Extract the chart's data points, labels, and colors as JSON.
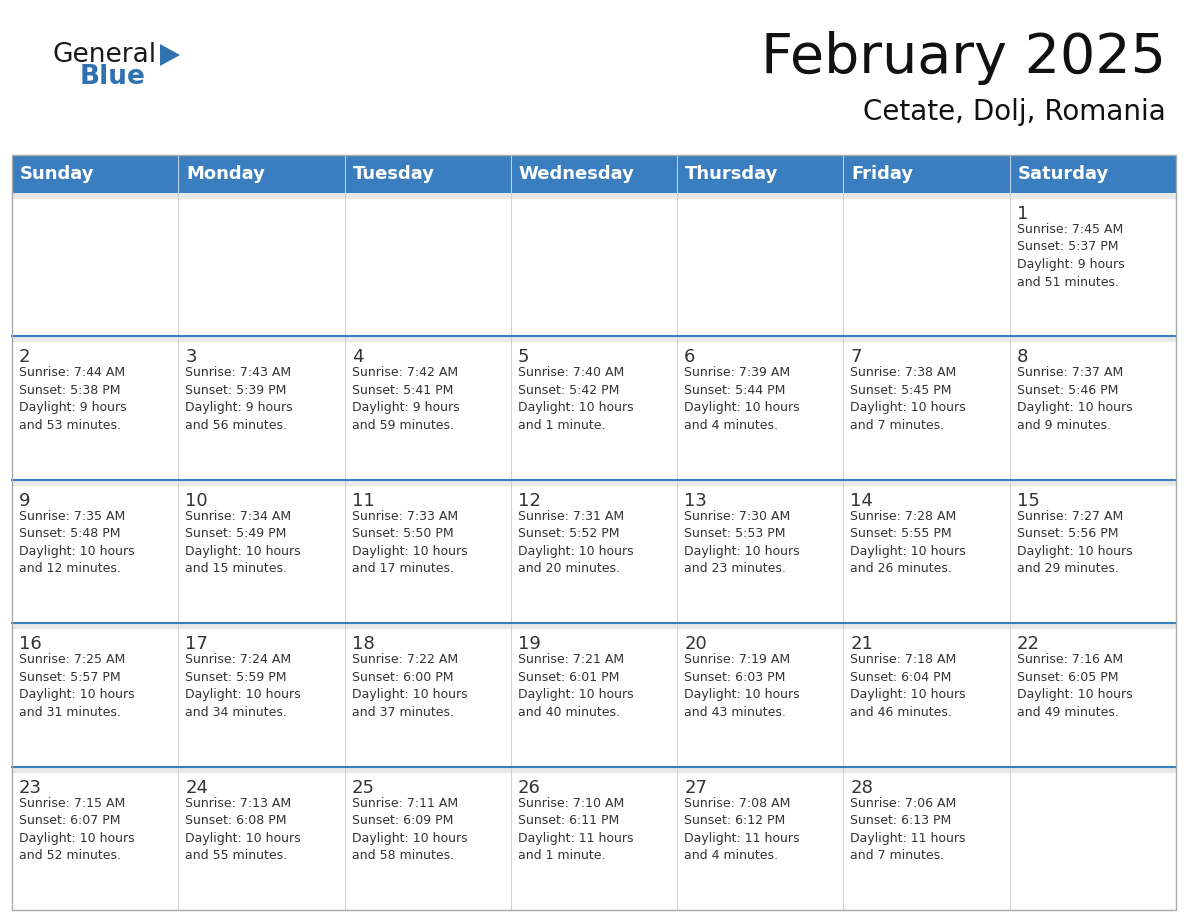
{
  "title": "February 2025",
  "subtitle": "Cetate, Dolj, Romania",
  "header_bg": "#3a7ebf",
  "header_text": "#ffffff",
  "cell_bg": "#ffffff",
  "cell_top_strip": "#e8e8e8",
  "cell_border": "#c8c8c8",
  "row_separator": "#3a7ebf",
  "day_names": [
    "Sunday",
    "Monday",
    "Tuesday",
    "Wednesday",
    "Thursday",
    "Friday",
    "Saturday"
  ],
  "logo_general_color": "#1a1a1a",
  "logo_blue_color": "#3072b0",
  "logo_triangle_color": "#3072b0",
  "text_color": "#333333",
  "calendar": [
    [
      {
        "day": null,
        "info": ""
      },
      {
        "day": null,
        "info": ""
      },
      {
        "day": null,
        "info": ""
      },
      {
        "day": null,
        "info": ""
      },
      {
        "day": null,
        "info": ""
      },
      {
        "day": null,
        "info": ""
      },
      {
        "day": 1,
        "info": "Sunrise: 7:45 AM\nSunset: 5:37 PM\nDaylight: 9 hours\nand 51 minutes."
      }
    ],
    [
      {
        "day": 2,
        "info": "Sunrise: 7:44 AM\nSunset: 5:38 PM\nDaylight: 9 hours\nand 53 minutes."
      },
      {
        "day": 3,
        "info": "Sunrise: 7:43 AM\nSunset: 5:39 PM\nDaylight: 9 hours\nand 56 minutes."
      },
      {
        "day": 4,
        "info": "Sunrise: 7:42 AM\nSunset: 5:41 PM\nDaylight: 9 hours\nand 59 minutes."
      },
      {
        "day": 5,
        "info": "Sunrise: 7:40 AM\nSunset: 5:42 PM\nDaylight: 10 hours\nand 1 minute."
      },
      {
        "day": 6,
        "info": "Sunrise: 7:39 AM\nSunset: 5:44 PM\nDaylight: 10 hours\nand 4 minutes."
      },
      {
        "day": 7,
        "info": "Sunrise: 7:38 AM\nSunset: 5:45 PM\nDaylight: 10 hours\nand 7 minutes."
      },
      {
        "day": 8,
        "info": "Sunrise: 7:37 AM\nSunset: 5:46 PM\nDaylight: 10 hours\nand 9 minutes."
      }
    ],
    [
      {
        "day": 9,
        "info": "Sunrise: 7:35 AM\nSunset: 5:48 PM\nDaylight: 10 hours\nand 12 minutes."
      },
      {
        "day": 10,
        "info": "Sunrise: 7:34 AM\nSunset: 5:49 PM\nDaylight: 10 hours\nand 15 minutes."
      },
      {
        "day": 11,
        "info": "Sunrise: 7:33 AM\nSunset: 5:50 PM\nDaylight: 10 hours\nand 17 minutes."
      },
      {
        "day": 12,
        "info": "Sunrise: 7:31 AM\nSunset: 5:52 PM\nDaylight: 10 hours\nand 20 minutes."
      },
      {
        "day": 13,
        "info": "Sunrise: 7:30 AM\nSunset: 5:53 PM\nDaylight: 10 hours\nand 23 minutes."
      },
      {
        "day": 14,
        "info": "Sunrise: 7:28 AM\nSunset: 5:55 PM\nDaylight: 10 hours\nand 26 minutes."
      },
      {
        "day": 15,
        "info": "Sunrise: 7:27 AM\nSunset: 5:56 PM\nDaylight: 10 hours\nand 29 minutes."
      }
    ],
    [
      {
        "day": 16,
        "info": "Sunrise: 7:25 AM\nSunset: 5:57 PM\nDaylight: 10 hours\nand 31 minutes."
      },
      {
        "day": 17,
        "info": "Sunrise: 7:24 AM\nSunset: 5:59 PM\nDaylight: 10 hours\nand 34 minutes."
      },
      {
        "day": 18,
        "info": "Sunrise: 7:22 AM\nSunset: 6:00 PM\nDaylight: 10 hours\nand 37 minutes."
      },
      {
        "day": 19,
        "info": "Sunrise: 7:21 AM\nSunset: 6:01 PM\nDaylight: 10 hours\nand 40 minutes."
      },
      {
        "day": 20,
        "info": "Sunrise: 7:19 AM\nSunset: 6:03 PM\nDaylight: 10 hours\nand 43 minutes."
      },
      {
        "day": 21,
        "info": "Sunrise: 7:18 AM\nSunset: 6:04 PM\nDaylight: 10 hours\nand 46 minutes."
      },
      {
        "day": 22,
        "info": "Sunrise: 7:16 AM\nSunset: 6:05 PM\nDaylight: 10 hours\nand 49 minutes."
      }
    ],
    [
      {
        "day": 23,
        "info": "Sunrise: 7:15 AM\nSunset: 6:07 PM\nDaylight: 10 hours\nand 52 minutes."
      },
      {
        "day": 24,
        "info": "Sunrise: 7:13 AM\nSunset: 6:08 PM\nDaylight: 10 hours\nand 55 minutes."
      },
      {
        "day": 25,
        "info": "Sunrise: 7:11 AM\nSunset: 6:09 PM\nDaylight: 10 hours\nand 58 minutes."
      },
      {
        "day": 26,
        "info": "Sunrise: 7:10 AM\nSunset: 6:11 PM\nDaylight: 11 hours\nand 1 minute."
      },
      {
        "day": 27,
        "info": "Sunrise: 7:08 AM\nSunset: 6:12 PM\nDaylight: 11 hours\nand 4 minutes."
      },
      {
        "day": 28,
        "info": "Sunrise: 7:06 AM\nSunset: 6:13 PM\nDaylight: 11 hours\nand 7 minutes."
      },
      {
        "day": null,
        "info": ""
      }
    ]
  ]
}
